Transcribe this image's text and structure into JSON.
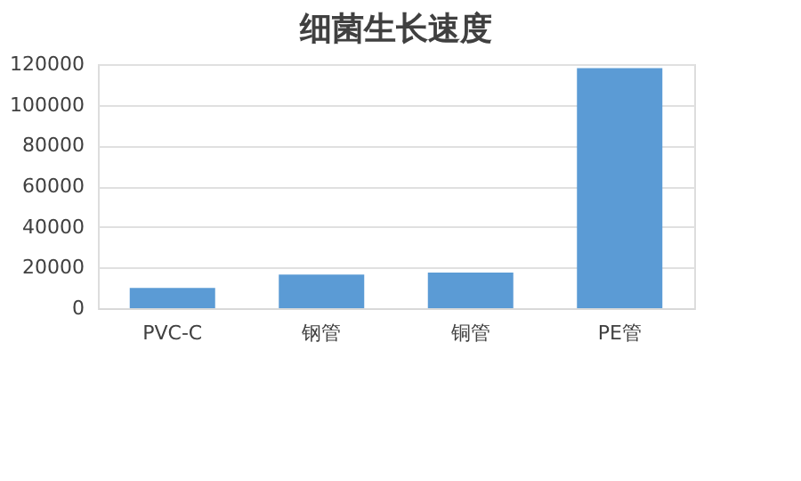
{
  "chart_data": {
    "type": "bar",
    "title": "细菌生长速度",
    "categories": [
      "PVC-C",
      "钢管",
      "铜管",
      "PE管"
    ],
    "values": [
      10000,
      16500,
      17500,
      118000
    ],
    "color": "#5b9bd5",
    "ylim": [
      0,
      120000
    ],
    "yticks": [
      0,
      20000,
      40000,
      60000,
      80000,
      100000,
      120000
    ],
    "grid": "y"
  }
}
